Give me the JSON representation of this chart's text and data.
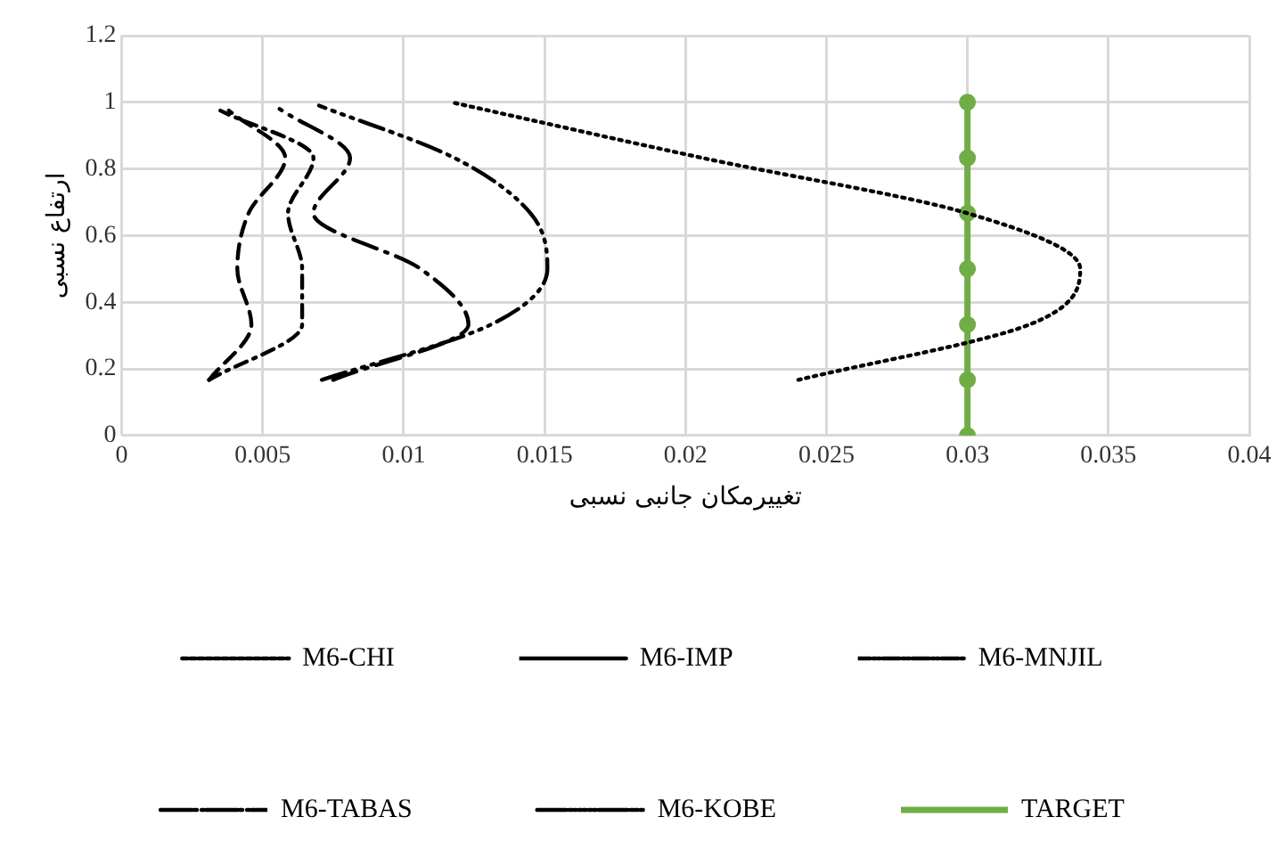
{
  "chart_data": {
    "type": "line",
    "xlabel": "تغییرمکان جانبی نسبی",
    "ylabel": "ارتفاع نسبی",
    "xlim": [
      0,
      0.04
    ],
    "xticks": [
      0,
      0.005,
      0.01,
      0.015,
      0.02,
      0.025,
      0.03,
      0.035,
      0.04
    ],
    "ylim": [
      0,
      1.2
    ],
    "yticks": [
      0,
      0.2,
      0.4,
      0.6,
      0.8,
      1,
      1.2
    ],
    "grid": true,
    "legend": "bottom",
    "marker": "none",
    "series": [
      {
        "name": "M6-CHI",
        "color": "#000000",
        "line_style": "dotted",
        "x": [
          0.024,
          0.0322,
          0.034,
          0.03,
          0.0206,
          0.0117
        ],
        "values": [
          0.167,
          0.333,
          0.5,
          0.667,
          0.833,
          1
        ]
      },
      {
        "name": "M6-IMP",
        "color": "#000000",
        "line_style": "dashed",
        "x": [
          0.0031,
          0.0046,
          0.0041,
          0.0045,
          0.0058,
          0.0038
        ],
        "values": [
          0.167,
          0.333,
          0.5,
          0.667,
          0.833,
          0.975
        ]
      },
      {
        "name": "M6-MNJIL",
        "color": "#000000",
        "line_style": "dashed",
        "x": [
          0.0031,
          0.0064,
          0.0064,
          0.0059,
          0.0068,
          0.0035
        ],
        "values": [
          0.167,
          0.333,
          0.5,
          0.667,
          0.833,
          0.975
        ]
      },
      {
        "name": "M6-TABAS",
        "color": "#000000",
        "line_style": "dashed",
        "x": [
          0.0075,
          0.0123,
          0.0106,
          0.0068,
          0.0081,
          0.0056
        ],
        "values": [
          0.167,
          0.333,
          0.5,
          0.667,
          0.833,
          0.98
        ]
      },
      {
        "name": "M6-KOBE",
        "color": "#000000",
        "line_style": "dashed",
        "x": [
          0.0071,
          0.0131,
          0.0151,
          0.0145,
          0.0118,
          0.007
        ],
        "values": [
          0.167,
          0.333,
          0.5,
          0.667,
          0.833,
          0.99
        ]
      },
      {
        "name": "TARGET",
        "color": "#70ad47",
        "line_style": "solid",
        "marker": "circle",
        "x": [
          0.03,
          0.03,
          0.03,
          0.03,
          0.03,
          0.03,
          0.03
        ],
        "values": [
          0,
          0.167,
          0.333,
          0.5,
          0.667,
          0.833,
          1
        ]
      }
    ]
  }
}
